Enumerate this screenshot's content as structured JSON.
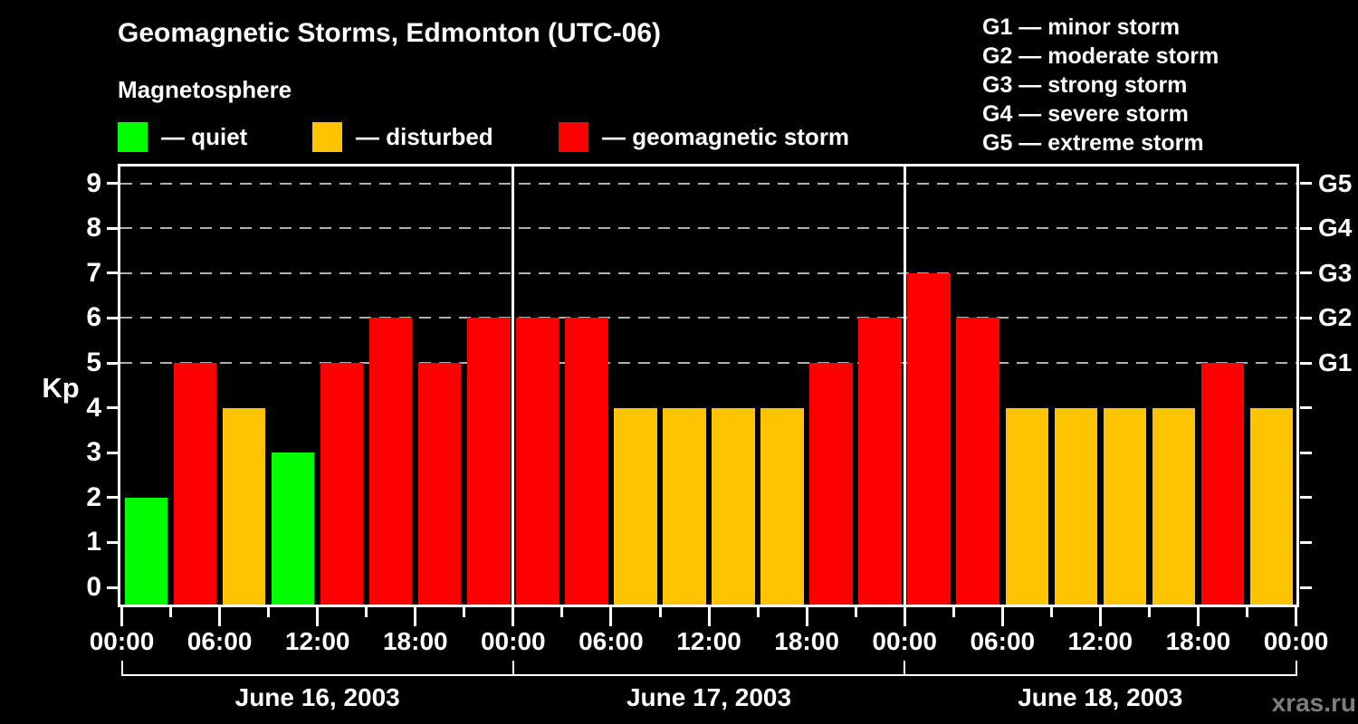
{
  "title": "Geomagnetic Storms, Edmonton (UTC-06)",
  "legend": {
    "heading": "Magnetosphere",
    "items": [
      {
        "key": "quiet",
        "label": "— quiet",
        "color": "#00ff00"
      },
      {
        "key": "disturbed",
        "label": "— disturbed",
        "color": "#ffc400"
      },
      {
        "key": "storm",
        "label": "— geomagnetic storm",
        "color": "#ff0000"
      }
    ]
  },
  "storm_scale_legend": [
    "G1 — minor storm",
    "G2 — moderate storm",
    "G3 — strong storm",
    "G4 — severe storm",
    "G5 — extreme storm"
  ],
  "watermark": "xras.ru",
  "colors": {
    "quiet": "#00ff00",
    "disturbed": "#ffc400",
    "storm": "#ff0000",
    "grid": "#b0b0b0",
    "axis": "#ffffff",
    "background": "#000000",
    "watermark": "#7d7d7d"
  },
  "chart_data": {
    "type": "bar",
    "title": "Geomagnetic Storms, Edmonton (UTC-06)",
    "ylabel": "Kp",
    "ylim": [
      0,
      9
    ],
    "yticks": [
      0,
      1,
      2,
      3,
      4,
      5,
      6,
      7,
      8,
      9
    ],
    "gridlines_at_kp": [
      5,
      6,
      7,
      8,
      9
    ],
    "grid_style": "dashed",
    "legend_position": "top",
    "right_axis": [
      {
        "label": "G1",
        "kp": 5
      },
      {
        "label": "G2",
        "kp": 6
      },
      {
        "label": "G3",
        "kp": 7
      },
      {
        "label": "G4",
        "kp": 8
      },
      {
        "label": "G5",
        "kp": 9
      }
    ],
    "x_tick_labels": [
      "00:00",
      "06:00",
      "12:00",
      "18:00",
      "00:00",
      "06:00",
      "12:00",
      "18:00",
      "00:00",
      "06:00",
      "12:00",
      "18:00",
      "00:00"
    ],
    "minor_tick_interval_hours": 3,
    "bar_interval_hours": 3,
    "color_rule": {
      "quiet_max_kp": 3,
      "disturbed_kp": 4,
      "storm_min_kp": 5
    },
    "days": [
      {
        "date": "June 16, 2003",
        "kp_values": [
          2,
          5,
          4,
          3,
          5,
          6,
          5,
          6
        ]
      },
      {
        "date": "June 17, 2003",
        "kp_values": [
          6,
          6,
          4,
          4,
          4,
          4,
          5,
          6
        ]
      },
      {
        "date": "June 18, 2003",
        "kp_values": [
          7,
          6,
          4,
          4,
          4,
          4,
          5,
          4
        ]
      }
    ]
  }
}
